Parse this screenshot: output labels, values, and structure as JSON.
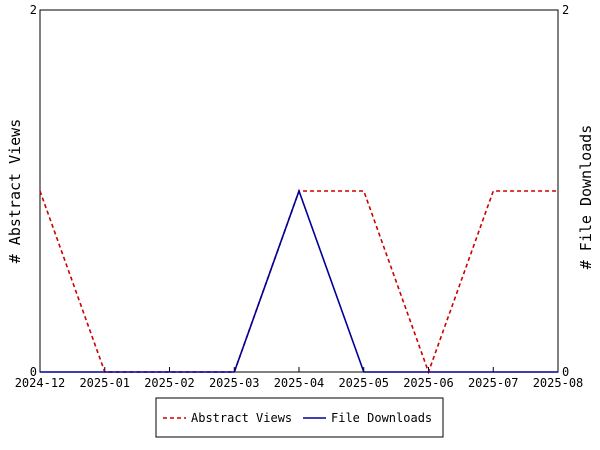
{
  "chart_data": {
    "type": "line",
    "x": [
      "2024-12",
      "2025-01",
      "2025-02",
      "2025-03",
      "2025-04",
      "2025-05",
      "2025-06",
      "2025-07",
      "2025-08"
    ],
    "series": [
      {
        "name": "Abstract Views",
        "axis": "left",
        "color": "#cc0000",
        "dash": "dashed",
        "values": [
          1,
          0,
          0,
          0,
          1,
          1,
          0,
          1,
          1
        ]
      },
      {
        "name": "File Downloads",
        "axis": "right",
        "color": "#000099",
        "dash": "solid",
        "values": [
          0,
          0,
          0,
          0,
          1,
          0,
          0,
          0,
          0
        ]
      }
    ],
    "ylabel_left": "# Abstract Views",
    "ylabel_right": "# File Downloads",
    "ylim_left": [
      0,
      2
    ],
    "ylim_right": [
      0,
      2
    ],
    "yticks_left": [
      "0",
      "2"
    ],
    "yticks_right": [
      "0",
      "2"
    ],
    "grid": false,
    "legend_position": "bottom-center"
  }
}
